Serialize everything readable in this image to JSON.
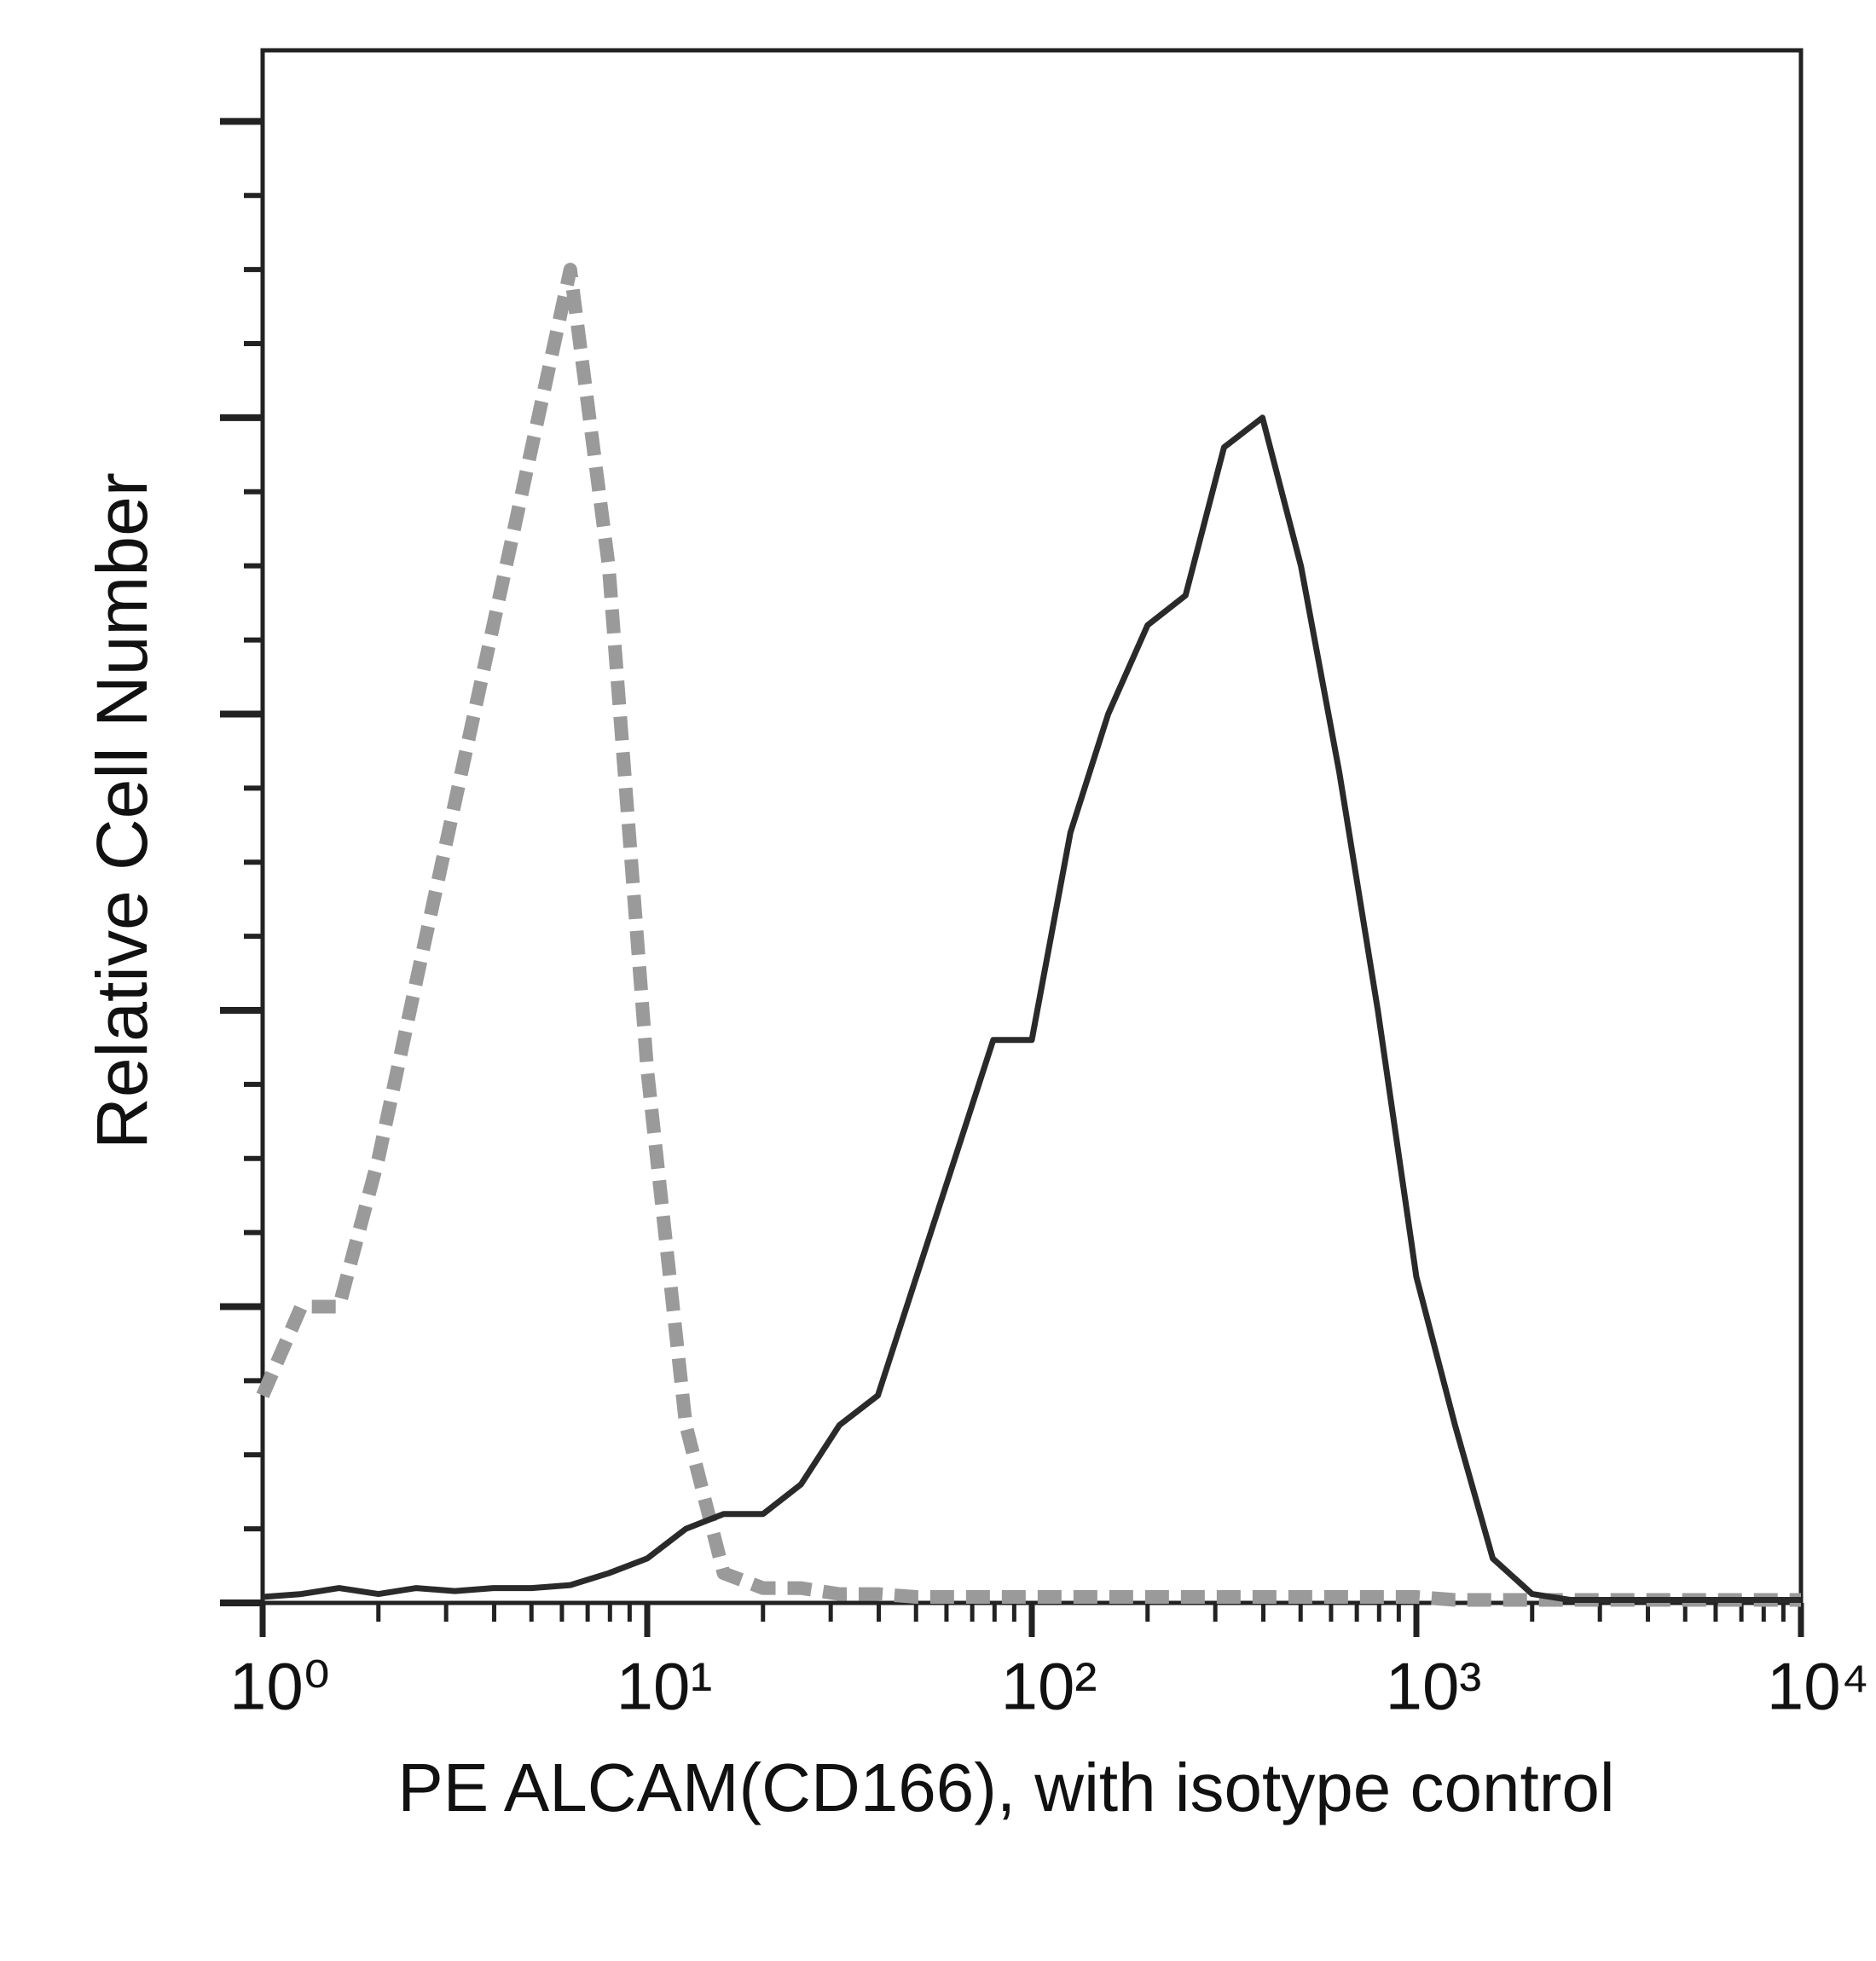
{
  "chart_data": {
    "type": "line",
    "x_label": "PE ALCAM(CD166), with isotype control",
    "y_label": "Relative Cell Number",
    "log_x": true,
    "xlim": [
      1,
      10000
    ],
    "xticks": [
      {
        "value": 1,
        "label": "10⁰"
      },
      {
        "value": 10,
        "label": "10¹"
      },
      {
        "value": 100,
        "label": "10²"
      },
      {
        "value": 1000,
        "label": "10³"
      },
      {
        "value": 10000,
        "label": "10⁴"
      }
    ],
    "xminorticks": [
      2,
      3,
      4,
      5,
      6,
      7,
      8,
      9,
      20,
      30,
      40,
      50,
      60,
      70,
      80,
      90,
      200,
      300,
      400,
      500,
      600,
      700,
      800,
      900,
      2000,
      3000,
      4000,
      5000,
      6000,
      7000,
      8000,
      9000
    ],
    "ylim": [
      0,
      5.24
    ],
    "yticks": [
      0,
      1,
      2,
      3,
      4,
      5
    ],
    "yminorticks": [
      0.25,
      0.5,
      0.75,
      1.25,
      1.5,
      1.75,
      2.25,
      2.5,
      2.75,
      3.25,
      3.5,
      3.75,
      4.25,
      4.5,
      4.75
    ],
    "x": [
      1,
      1.26,
      1.58,
      2,
      2.51,
      3.16,
      3.98,
      5.01,
      6.31,
      7.94,
      10,
      12.6,
      15.8,
      20,
      25.1,
      31.6,
      39.8,
      50.1,
      63.1,
      79.4,
      100,
      126,
      158,
      200,
      251,
      316,
      398,
      501,
      631,
      794,
      1000,
      1260,
      1580,
      2000,
      2510,
      3160,
      3980,
      5010,
      6310,
      7940,
      10000
    ],
    "series": [
      {
        "color": "#9a9a9a",
        "dashed": true,
        "values": [
          0.7,
          1.0,
          1.0,
          1.5,
          2.1,
          2.7,
          3.3,
          3.9,
          4.5,
          3.5,
          1.8,
          0.6,
          0.1,
          0.05,
          0.05,
          0.03,
          0.03,
          0.02,
          0.02,
          0.02,
          0.02,
          0.02,
          0.02,
          0.02,
          0.02,
          0.02,
          0.02,
          0.02,
          0.02,
          0.02,
          0.02,
          0.01,
          0.01,
          0.01,
          0.01,
          0.01,
          0.01,
          0.01,
          0.01,
          0.01,
          0.01
        ]
      },
      {
        "color": "#2a2a2a",
        "dashed": false,
        "values": [
          0.02,
          0.03,
          0.05,
          0.03,
          0.05,
          0.04,
          0.05,
          0.05,
          0.06,
          0.1,
          0.15,
          0.25,
          0.3,
          0.3,
          0.4,
          0.6,
          0.7,
          1.1,
          1.5,
          1.9,
          1.9,
          2.6,
          3.0,
          3.3,
          3.4,
          3.9,
          4.0,
          3.5,
          2.8,
          2.0,
          1.1,
          0.6,
          0.15,
          0.03,
          0.01,
          0.01,
          0.01,
          0.01,
          0.01,
          0.01,
          0.01
        ]
      }
    ]
  }
}
